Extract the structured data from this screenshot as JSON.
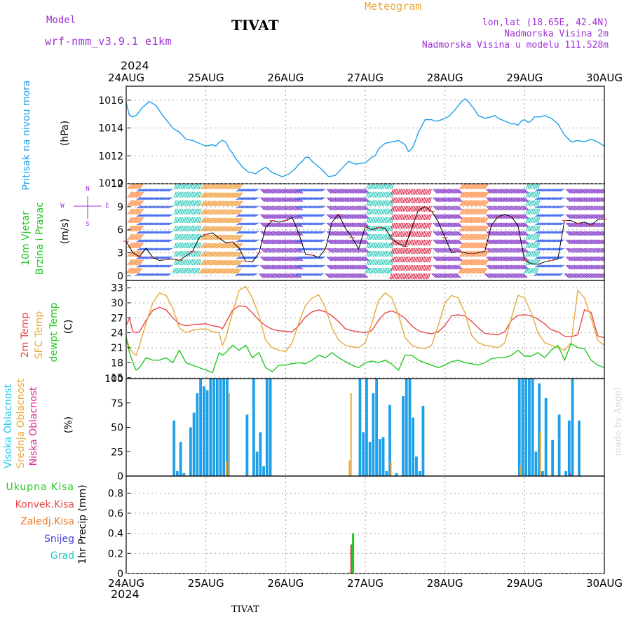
{
  "header": {
    "model_label": "Model",
    "model_name": "wrf-nmm_v3.9.1 e1km",
    "station": "TIVAT",
    "chart_kind": "Meteogram",
    "lonlat": "lon,lat (18.65E, 42.4N)",
    "altitude": "Nadmorska Visina 2m",
    "model_altitude": "Nadmorska Visina u modelu 111.528m",
    "year": "2024",
    "footer_station": "TIVAT",
    "credit": "made by Angel"
  },
  "colors": {
    "pressure": "#1ea0e8",
    "temp2m": "#e84848",
    "sfc_temp": "#e8a83a",
    "dewpoint": "#22c822",
    "cloud_high": "#1ea0e8",
    "cloud_mid": "#e8a83a",
    "cloud_low": "#d8309a",
    "precip_total": "#22c822",
    "precip_conv": "#e84848",
    "precip_frozen": "#f07828",
    "snow": "#4040e0",
    "graupel": "#20c8c0",
    "label_purple": "#a030d8"
  },
  "chart_data": [
    {
      "panel": "pressure",
      "type": "line",
      "x_ticks": [
        "24AUG",
        "25AUG",
        "26AUG",
        "27AUG",
        "28AUG",
        "29AUG",
        "30AUG"
      ],
      "xlim_hours": [
        0,
        144
      ],
      "ylim": [
        1010,
        1017
      ],
      "y_ticks": [
        1012,
        1014,
        1016
      ],
      "ylabel": "Pritisak na nivou mora",
      "unit": "(hPa)",
      "x_hours": [
        0,
        1,
        2,
        3,
        5,
        7,
        9,
        11,
        13,
        14,
        16,
        18,
        20,
        22,
        24,
        26,
        27,
        28,
        29,
        30,
        31,
        32,
        33,
        35,
        37,
        38,
        39,
        40,
        42,
        44,
        45,
        47,
        49,
        50,
        51,
        52,
        53,
        54,
        55,
        56,
        57,
        59,
        61,
        63,
        65,
        67,
        69,
        72,
        74,
        75,
        76,
        78,
        80,
        82,
        84,
        85,
        86,
        87,
        88,
        90,
        92,
        93,
        94,
        95,
        97,
        99,
        100,
        101,
        102,
        103,
        104,
        105,
        106,
        108,
        110,
        111,
        112,
        113,
        114,
        115,
        116,
        117,
        118,
        119,
        120,
        121,
        122,
        123,
        125,
        126,
        128,
        130,
        132,
        134,
        136,
        138,
        140,
        142,
        144
      ],
      "values": [
        1015.8,
        1014.9,
        1014.8,
        1014.9,
        1015.5,
        1015.9,
        1015.6,
        1014.9,
        1014.3,
        1014.0,
        1013.7,
        1013.2,
        1013.1,
        1012.9,
        1012.7,
        1012.8,
        1012.7,
        1013.0,
        1013.1,
        1013.0,
        1012.5,
        1012.2,
        1011.8,
        1011.2,
        1010.8,
        1010.8,
        1010.7,
        1010.9,
        1011.2,
        1010.8,
        1010.7,
        1010.5,
        1010.7,
        1010.9,
        1011.1,
        1011.4,
        1011.6,
        1011.9,
        1011.9,
        1011.6,
        1011.4,
        1011.0,
        1010.5,
        1010.6,
        1011.1,
        1011.6,
        1011.4,
        1011.5,
        1011.9,
        1012.0,
        1012.5,
        1012.9,
        1013.0,
        1013.1,
        1012.8,
        1012.3,
        1012.5,
        1013.0,
        1013.7,
        1014.6,
        1014.6,
        1014.5,
        1014.5,
        1014.6,
        1014.8,
        1015.3,
        1015.6,
        1015.9,
        1016.1,
        1015.9,
        1015.6,
        1015.3,
        1014.9,
        1014.7,
        1014.8,
        1014.9,
        1014.7,
        1014.6,
        1014.5,
        1014.4,
        1014.3,
        1014.3,
        1014.2,
        1014.5,
        1014.6,
        1014.4,
        1014.5,
        1014.8,
        1014.8,
        1014.9,
        1014.7,
        1014.3,
        1013.5,
        1013.0,
        1013.1,
        1013.0,
        1013.2,
        1013.0,
        1012.7
      ]
    },
    {
      "panel": "wind",
      "type": "line",
      "ylabel": "10m Vjetar Brzina i Pravac",
      "unit": "(m/s)",
      "compass": [
        "N",
        "E",
        "S",
        "W"
      ],
      "ylim": [
        -0.6,
        12
      ],
      "y_ticks": [
        0,
        3,
        6,
        9,
        12
      ],
      "x_hours": [
        0,
        2,
        4,
        6,
        8,
        10,
        12,
        14,
        16,
        18,
        20,
        22,
        24,
        26,
        28,
        30,
        32,
        34,
        36,
        38,
        40,
        42,
        44,
        46,
        48,
        50,
        52,
        54,
        56,
        58,
        60,
        62,
        64,
        66,
        68,
        70,
        72,
        74,
        76,
        78,
        80,
        82,
        84,
        86,
        88,
        90,
        92,
        94,
        96,
        98,
        100,
        102,
        104,
        106,
        108,
        110,
        112,
        114,
        116,
        118,
        120,
        122,
        124,
        126,
        128,
        130,
        132,
        134,
        136,
        138,
        140,
        142,
        144
      ],
      "values": [
        4.5,
        3.0,
        2.5,
        3.6,
        2.4,
        2.0,
        2.1,
        2.2,
        2.0,
        2.6,
        3.2,
        5.0,
        5.4,
        5.6,
        4.9,
        4.3,
        4.4,
        3.6,
        1.9,
        1.8,
        3.0,
        6.3,
        7.2,
        7.0,
        7.2,
        7.6,
        5.5,
        2.8,
        2.7,
        2.4,
        3.5,
        7.0,
        8.0,
        6.2,
        5.0,
        3.5,
        6.4,
        6.0,
        6.3,
        6.2,
        4.8,
        4.2,
        3.8,
        6.2,
        8.6,
        9.0,
        8.4,
        7.0,
        5.0,
        3.0,
        3.2,
        3.0,
        2.9,
        3.0,
        3.2,
        6.6,
        7.7,
        8.0,
        7.7,
        6.5,
        2.0,
        1.6,
        1.5,
        1.8,
        2.0,
        2.2,
        7.2,
        7.2,
        6.8,
        7.0,
        6.6,
        7.3,
        7.4
      ],
      "direction_bands": [
        {
          "from_h": 0,
          "to_h": 4,
          "dir": "SW"
        },
        {
          "from_h": 4,
          "to_h": 14,
          "dir": "N"
        },
        {
          "from_h": 14,
          "to_h": 22,
          "dir": "S"
        },
        {
          "from_h": 22,
          "to_h": 34,
          "dir": "SE"
        },
        {
          "from_h": 34,
          "to_h": 40,
          "dir": "N"
        },
        {
          "from_h": 40,
          "to_h": 52,
          "dir": "NE"
        },
        {
          "from_h": 52,
          "to_h": 60,
          "dir": "N"
        },
        {
          "from_h": 60,
          "to_h": 72,
          "dir": "NE"
        },
        {
          "from_h": 72,
          "to_h": 80,
          "dir": "S"
        },
        {
          "from_h": 80,
          "to_h": 92,
          "dir": "E"
        },
        {
          "from_h": 92,
          "to_h": 100,
          "dir": "NE"
        },
        {
          "from_h": 100,
          "to_h": 108,
          "dir": "SW"
        },
        {
          "from_h": 108,
          "to_h": 120,
          "dir": "NE"
        },
        {
          "from_h": 120,
          "to_h": 124,
          "dir": "S"
        },
        {
          "from_h": 124,
          "to_h": 132,
          "dir": "N"
        },
        {
          "from_h": 132,
          "to_h": 144,
          "dir": "NE"
        }
      ]
    },
    {
      "panel": "temperature",
      "type": "line",
      "ylabels": [
        "2m Temp",
        "SFC Temp",
        "dewpt Temp"
      ],
      "unit": "(C)",
      "ylim": [
        14.8,
        34.5
      ],
      "y_ticks": [
        15,
        18,
        21,
        24,
        27,
        30,
        33
      ],
      "x_hours": [
        0,
        1,
        2,
        3,
        4,
        6,
        8,
        10,
        12,
        14,
        16,
        18,
        20,
        22,
        24,
        26,
        28,
        29,
        30,
        32,
        34,
        36,
        38,
        40,
        42,
        44,
        46,
        48,
        50,
        52,
        54,
        56,
        58,
        60,
        62,
        64,
        66,
        68,
        70,
        72,
        74,
        76,
        78,
        80,
        82,
        84,
        86,
        88,
        90,
        92,
        94,
        96,
        98,
        100,
        102,
        104,
        106,
        108,
        110,
        112,
        114,
        116,
        118,
        120,
        122,
        124,
        126,
        128,
        130,
        132,
        134,
        136,
        138,
        140,
        142,
        144
      ],
      "series": [
        {
          "name": "2m Temp",
          "values": [
            25.5,
            26.9,
            24.2,
            24.0,
            24.2,
            26.5,
            28.5,
            29.1,
            28.6,
            27.0,
            25.8,
            25.4,
            25.6,
            25.7,
            25.8,
            25.4,
            25.2,
            24.8,
            26.0,
            28.5,
            29.4,
            29.3,
            28.0,
            26.5,
            25.4,
            24.7,
            24.4,
            24.3,
            24.2,
            25.5,
            27.2,
            28.2,
            28.6,
            28.2,
            27.4,
            26.2,
            24.8,
            24.4,
            24.2,
            24.0,
            24.5,
            26.5,
            28.0,
            28.4,
            27.8,
            26.9,
            25.4,
            24.4,
            24.0,
            23.8,
            24.2,
            25.5,
            27.4,
            27.6,
            27.4,
            26.3,
            25.0,
            23.9,
            23.7,
            23.6,
            24.2,
            26.5,
            27.5,
            27.6,
            27.4,
            26.7,
            25.8,
            24.6,
            24.2,
            23.3,
            23.2,
            23.6,
            28.6,
            28.1,
            23.4,
            23.0
          ]
        },
        {
          "name": "SFC Temp",
          "values": [
            23.0,
            21.0,
            20.0,
            19.5,
            21.5,
            26.0,
            30.0,
            32.0,
            31.5,
            29.0,
            25.0,
            24.0,
            24.5,
            24.7,
            24.8,
            24.2,
            24.0,
            21.5,
            23.0,
            28.0,
            32.5,
            33.3,
            31.0,
            27.5,
            22.5,
            21.0,
            20.5,
            20.2,
            22.0,
            26.0,
            29.5,
            31.0,
            31.6,
            29.0,
            25.0,
            22.5,
            21.5,
            21.2,
            21.0,
            22.0,
            26.0,
            30.5,
            32.0,
            31.0,
            27.5,
            23.0,
            21.5,
            21.0,
            20.8,
            21.5,
            25.5,
            30.0,
            31.5,
            31.0,
            28.0,
            23.5,
            22.0,
            21.5,
            21.3,
            21.0,
            22.0,
            27.0,
            31.5,
            31.0,
            28.0,
            24.0,
            22.0,
            21.5,
            21.0,
            20.5,
            22.0,
            32.5,
            31.0,
            27.0,
            22.5,
            21.5
          ]
        },
        {
          "name": "dewpt Temp",
          "values": [
            23.0,
            20.0,
            18.0,
            16.5,
            17.0,
            19.0,
            18.5,
            18.5,
            19.0,
            18.0,
            20.5,
            18.0,
            17.5,
            17.0,
            16.5,
            16.0,
            20.0,
            19.5,
            20.0,
            21.5,
            20.5,
            21.5,
            19.0,
            20.0,
            17.0,
            16.2,
            17.5,
            17.5,
            17.8,
            18.0,
            17.8,
            18.5,
            19.5,
            19.0,
            20.0,
            19.0,
            18.2,
            17.5,
            17.0,
            18.0,
            18.3,
            18.0,
            18.5,
            17.7,
            16.5,
            19.5,
            19.5,
            18.5,
            18.0,
            17.5,
            17.0,
            17.5,
            18.2,
            18.5,
            18.0,
            17.8,
            17.5,
            18.0,
            18.8,
            19.0,
            19.0,
            19.5,
            20.5,
            19.3,
            19.3,
            20.0,
            19.0,
            20.5,
            21.5,
            18.5,
            21.8,
            21.0,
            20.8,
            18.5,
            17.5,
            17.0
          ]
        }
      ]
    },
    {
      "panel": "clouds",
      "type": "bar",
      "ylabels": [
        "Visoka Oblacnost",
        "Srednja Oblacnost",
        "Niska Oblacnost"
      ],
      "unit": "(%)",
      "ylim": [
        0,
        100
      ],
      "y_ticks": [
        0,
        25,
        50,
        75,
        100
      ],
      "high_bars": [
        [
          14,
          57
        ],
        [
          15,
          5
        ],
        [
          16,
          35
        ],
        [
          17,
          3
        ],
        [
          19,
          50
        ],
        [
          20,
          65
        ],
        [
          21,
          85
        ],
        [
          22,
          100
        ],
        [
          23,
          92
        ],
        [
          24,
          88
        ],
        [
          25,
          100
        ],
        [
          26,
          100
        ],
        [
          27,
          100
        ],
        [
          28,
          100
        ],
        [
          29,
          100
        ],
        [
          30,
          100
        ],
        [
          36,
          63
        ],
        [
          38,
          100
        ],
        [
          39,
          25
        ],
        [
          40,
          45
        ],
        [
          41,
          10
        ],
        [
          42,
          100
        ],
        [
          43,
          100
        ],
        [
          70,
          100
        ],
        [
          71,
          45
        ],
        [
          72,
          100
        ],
        [
          73,
          35
        ],
        [
          74,
          85
        ],
        [
          75,
          100
        ],
        [
          76,
          38
        ],
        [
          77,
          40
        ],
        [
          78,
          5
        ],
        [
          79,
          73
        ],
        [
          81,
          3
        ],
        [
          83,
          82
        ],
        [
          84,
          100
        ],
        [
          85,
          100
        ],
        [
          86,
          60
        ],
        [
          87,
          20
        ],
        [
          88,
          5
        ],
        [
          89,
          72
        ],
        [
          118,
          100
        ],
        [
          119,
          100
        ],
        [
          120,
          100
        ],
        [
          121,
          100
        ],
        [
          122,
          100
        ],
        [
          123,
          25
        ],
        [
          124,
          95
        ],
        [
          125,
          5
        ],
        [
          126,
          80
        ],
        [
          128,
          37
        ],
        [
          130,
          63
        ],
        [
          132,
          5
        ],
        [
          133,
          57
        ],
        [
          134,
          100
        ],
        [
          136,
          57
        ]
      ],
      "mid_bars": [
        [
          30,
          15
        ],
        [
          30.8,
          85
        ],
        [
          67,
          16
        ],
        [
          67.5,
          85
        ],
        [
          79.5,
          15
        ],
        [
          118.5,
          10
        ],
        [
          124.5,
          45
        ]
      ],
      "low_bars": [
        [
          133.5,
          3
        ]
      ]
    },
    {
      "panel": "precip",
      "type": "bar",
      "ylabels": [
        "Ukupna Kisa",
        "Konvek.Kisa",
        "Zaledj.Kisa",
        "Snijeg",
        "Grad"
      ],
      "ylabel2": "1hr Precip (mm)",
      "ylim": [
        0,
        0.97
      ],
      "y_ticks": [
        0,
        0.2,
        0.4,
        0.6,
        0.8
      ],
      "total_bars": [
        [
          67,
          0.01
        ],
        [
          67.5,
          0.29
        ],
        [
          68,
          0.4
        ]
      ],
      "conv_bars": [
        [
          67.5,
          0.28
        ]
      ]
    }
  ]
}
